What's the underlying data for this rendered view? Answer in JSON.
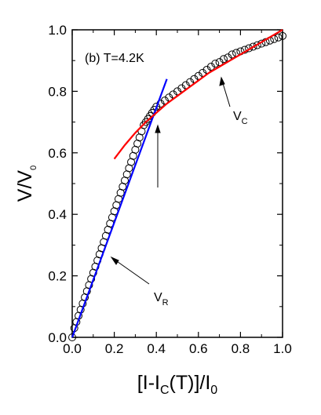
{
  "chart_data": {
    "type": "scatter",
    "annotation": "(b) T=4.2K",
    "xlabel": {
      "parts": [
        "[I-I",
        "C",
        "(T)]/I",
        "0"
      ]
    },
    "ylabel": {
      "parts": [
        "V/V",
        "0"
      ]
    },
    "xlim": [
      0.0,
      1.0
    ],
    "ylim": [
      0.0,
      1.0
    ],
    "xticks": [
      "0.0",
      "0.2",
      "0.4",
      "0.6",
      "0.8",
      "1.0"
    ],
    "yticks": [
      "0.0",
      "0.2",
      "0.4",
      "0.6",
      "0.8",
      "1.0"
    ],
    "grid": false,
    "legend": "none",
    "colors": {
      "data": "#000000",
      "fit_R": "#0000ff",
      "fit_C": "#ff0000"
    },
    "series": [
      {
        "style": "open-circles",
        "color": "#000000",
        "x": [
          0.0,
          0.01,
          0.02,
          0.03,
          0.04,
          0.05,
          0.06,
          0.07,
          0.08,
          0.09,
          0.1,
          0.11,
          0.12,
          0.13,
          0.14,
          0.15,
          0.16,
          0.17,
          0.18,
          0.19,
          0.2,
          0.21,
          0.22,
          0.23,
          0.24,
          0.25,
          0.26,
          0.27,
          0.28,
          0.29,
          0.3,
          0.31,
          0.32,
          0.33,
          0.34,
          0.35,
          0.36,
          0.37,
          0.38,
          0.39,
          0.4,
          0.42,
          0.44,
          0.46,
          0.48,
          0.5,
          0.52,
          0.54,
          0.56,
          0.58,
          0.6,
          0.62,
          0.64,
          0.66,
          0.68,
          0.7,
          0.72,
          0.74,
          0.76,
          0.78,
          0.8,
          0.82,
          0.84,
          0.86,
          0.88,
          0.9,
          0.92,
          0.94,
          0.96,
          0.98,
          1.0
        ],
        "y": [
          0.0,
          0.03,
          0.05,
          0.07,
          0.09,
          0.11,
          0.13,
          0.15,
          0.17,
          0.19,
          0.21,
          0.23,
          0.25,
          0.27,
          0.29,
          0.31,
          0.33,
          0.35,
          0.37,
          0.39,
          0.41,
          0.43,
          0.45,
          0.47,
          0.49,
          0.51,
          0.53,
          0.55,
          0.57,
          0.59,
          0.61,
          0.63,
          0.65,
          0.67,
          0.69,
          0.7,
          0.71,
          0.72,
          0.73,
          0.74,
          0.75,
          0.76,
          0.77,
          0.78,
          0.79,
          0.8,
          0.81,
          0.82,
          0.83,
          0.84,
          0.85,
          0.86,
          0.87,
          0.88,
          0.89,
          0.895,
          0.905,
          0.91,
          0.92,
          0.925,
          0.93,
          0.935,
          0.94,
          0.945,
          0.95,
          0.955,
          0.96,
          0.965,
          0.97,
          0.975,
          0.98
        ]
      },
      {
        "style": "line",
        "color": "#0000ff",
        "label": "V_R",
        "x": [
          0.0,
          0.45
        ],
        "y": [
          0.0,
          0.84
        ]
      },
      {
        "style": "line",
        "color": "#ff0000",
        "label": "V_C",
        "x": [
          0.2,
          0.25,
          0.3,
          0.35,
          0.4,
          0.45,
          0.5,
          0.55,
          0.6,
          0.65,
          0.7,
          0.75,
          0.8,
          0.85,
          0.9,
          0.95,
          1.0
        ],
        "y": [
          0.58,
          0.625,
          0.665,
          0.7,
          0.73,
          0.76,
          0.785,
          0.81,
          0.835,
          0.86,
          0.88,
          0.9,
          0.92,
          0.94,
          0.96,
          0.98,
          1.0
        ]
      }
    ],
    "labels": [
      {
        "base": "V",
        "sub": "R"
      },
      {
        "base": "V",
        "sub": "C"
      }
    ]
  }
}
